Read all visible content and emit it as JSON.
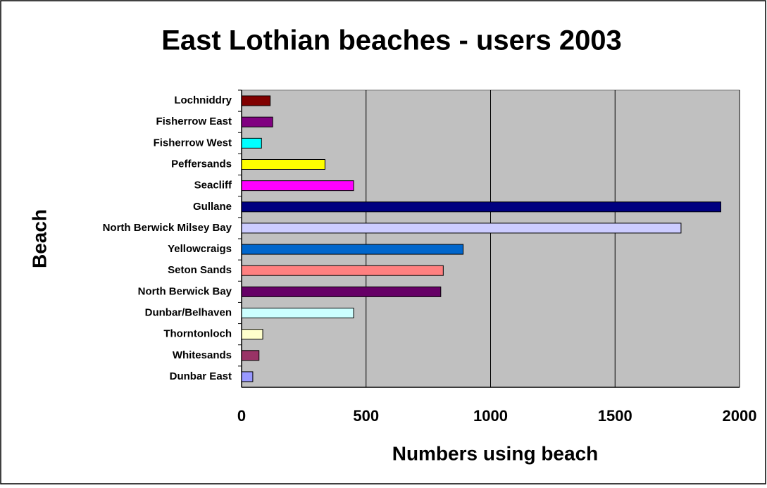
{
  "chart_data": {
    "type": "barh",
    "title": "East Lothian beaches - users 2003",
    "xlabel": "Numbers using beach",
    "ylabel": "Beach",
    "categories": [
      "Lochniddry",
      "Fisherrow East",
      "Fisherrow West",
      "Peffersands",
      "Seacliff",
      "Gullane",
      "North Berwick Milsey Bay",
      "Yellowcraigs",
      "Seton Sands",
      "North Berwick Bay",
      "Dunbar/Belhaven",
      "Thorntonloch",
      "Whitesands",
      "Dunbar East"
    ],
    "values": [
      115,
      125,
      80,
      335,
      450,
      1925,
      1765,
      890,
      810,
      800,
      450,
      85,
      70,
      45
    ],
    "colors": [
      "#800000",
      "#800080",
      "#00ffff",
      "#ffff00",
      "#ff00ff",
      "#000080",
      "#ccccff",
      "#0066cc",
      "#ff8080",
      "#660066",
      "#ccffff",
      "#ffffcc",
      "#993366",
      "#9999ff"
    ],
    "xlim": [
      0,
      2000
    ],
    "xticks": [
      0,
      500,
      1000,
      1500,
      2000
    ],
    "grid": true
  }
}
